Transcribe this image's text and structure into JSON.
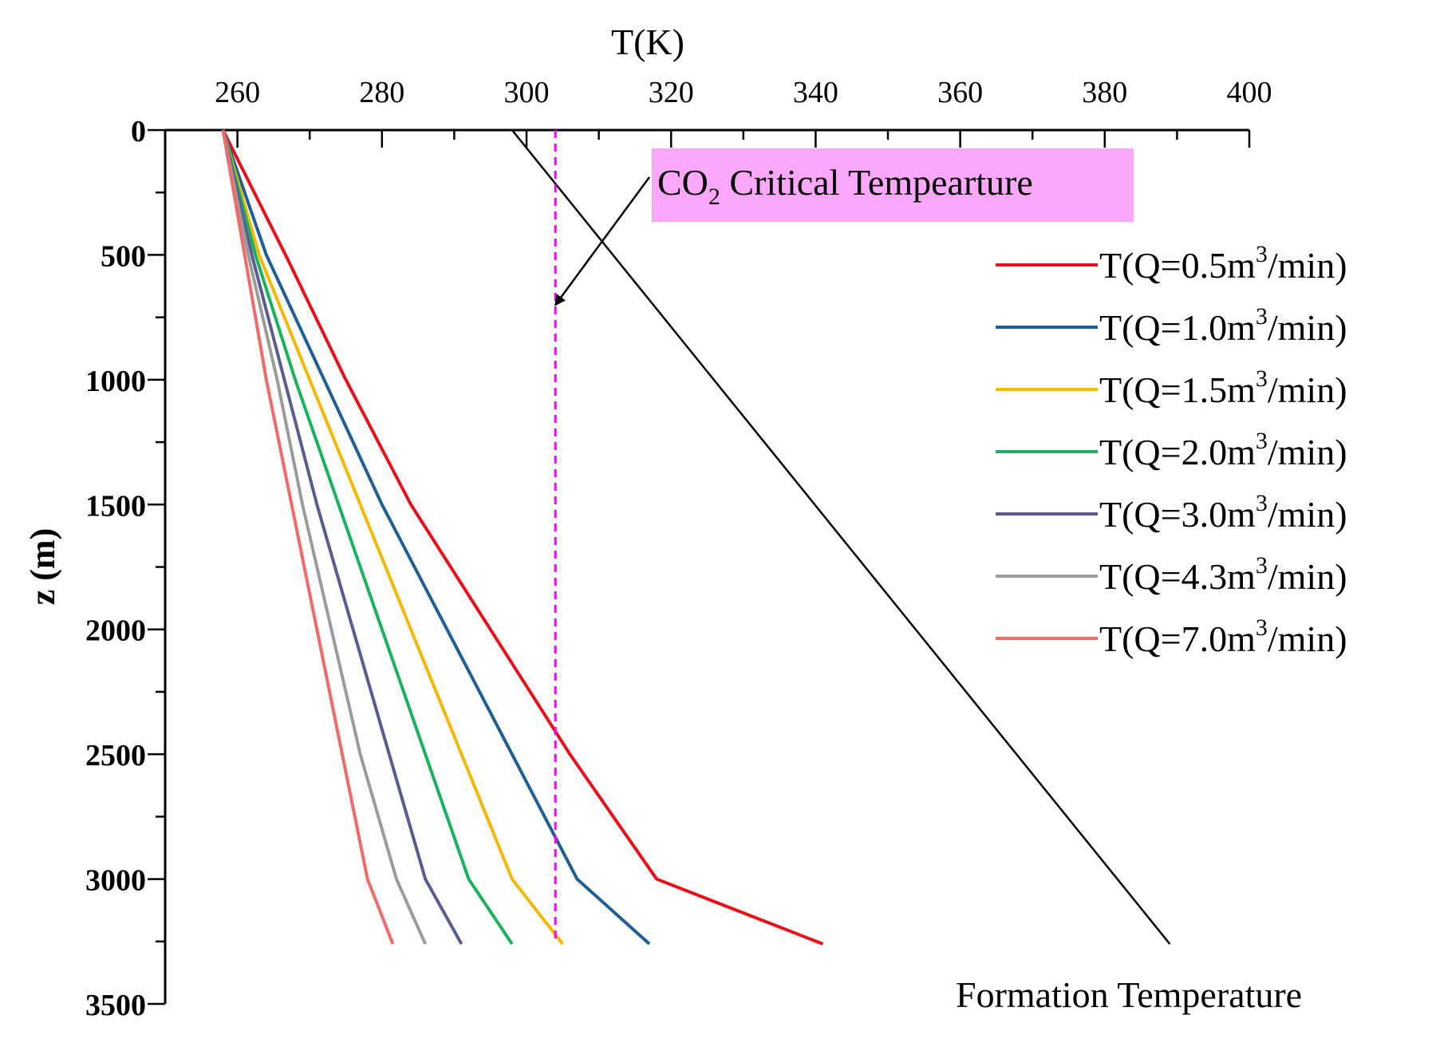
{
  "chart_data": {
    "type": "line",
    "xlabel": "T(K)",
    "ylabel": "z (m)",
    "xlim": [
      250,
      400
    ],
    "ylim": [
      0,
      3500
    ],
    "y_inverted": true,
    "x_axis_position": "top",
    "xticks": [
      260,
      280,
      300,
      320,
      340,
      360,
      380,
      400
    ],
    "yticks": [
      0,
      500,
      1000,
      1500,
      2000,
      2500,
      3000,
      3500
    ],
    "xtick_labels": [
      "260",
      "280",
      "300",
      "320",
      "340",
      "360",
      "380",
      "400"
    ],
    "ytick_labels": [
      "0",
      "500",
      "1000",
      "1500",
      "2000",
      "2500",
      "3000",
      "3500"
    ],
    "legend_position": "right",
    "series": [
      {
        "name": "T(Q=0.5m³/min)",
        "label_prefix": "T(Q=0.5m",
        "label_sup": "3",
        "label_suffix": "/min)",
        "color": "#e8111a",
        "points": [
          [
            258,
            0
          ],
          [
            267,
            520
          ],
          [
            275,
            1000
          ],
          [
            284,
            1500
          ],
          [
            295,
            2000
          ],
          [
            306,
            2500
          ],
          [
            318,
            3000
          ],
          [
            341,
            3260
          ]
        ]
      },
      {
        "name": "T(Q=1.0m³/min)",
        "label_prefix": "T(Q=1.0m",
        "label_sup": "3",
        "label_suffix": "/min)",
        "color": "#1f5f96",
        "points": [
          [
            258,
            0
          ],
          [
            264,
            500
          ],
          [
            272,
            1000
          ],
          [
            280,
            1500
          ],
          [
            289,
            2000
          ],
          [
            298,
            2500
          ],
          [
            307,
            3000
          ],
          [
            317,
            3260
          ]
        ]
      },
      {
        "name": "T(Q=1.5m³/min)",
        "label_prefix": "T(Q=1.5m",
        "label_sup": "3",
        "label_suffix": "/min)",
        "color": "#f5b800",
        "points": [
          [
            258,
            0
          ],
          [
            263,
            500
          ],
          [
            270,
            1000
          ],
          [
            277,
            1500
          ],
          [
            284,
            2000
          ],
          [
            291,
            2500
          ],
          [
            298,
            3000
          ],
          [
            305,
            3260
          ]
        ]
      },
      {
        "name": "T(Q=2.0m³/min)",
        "label_prefix": "T(Q=2.0m",
        "label_sup": "3",
        "label_suffix": "/min)",
        "color": "#1ab25d",
        "points": [
          [
            258,
            0
          ],
          [
            262.5,
            500
          ],
          [
            268,
            1000
          ],
          [
            274,
            1500
          ],
          [
            280,
            2000
          ],
          [
            286,
            2500
          ],
          [
            292,
            3000
          ],
          [
            298,
            3260
          ]
        ]
      },
      {
        "name": "T(Q=3.0m³/min)",
        "label_prefix": "T(Q=3.0m",
        "label_sup": "3",
        "label_suffix": "/min)",
        "color": "#5b5b94",
        "points": [
          [
            258,
            0
          ],
          [
            262,
            500
          ],
          [
            266.5,
            1000
          ],
          [
            271,
            1500
          ],
          [
            276,
            2000
          ],
          [
            281,
            2500
          ],
          [
            286,
            3000
          ],
          [
            291,
            3260
          ]
        ]
      },
      {
        "name": "T(Q=4.3m³/min)",
        "label_prefix": "T(Q=4.3m",
        "label_sup": "3",
        "label_suffix": "/min)",
        "color": "#9b9b9b",
        "points": [
          [
            258,
            0
          ],
          [
            261.5,
            500
          ],
          [
            265.5,
            1000
          ],
          [
            269,
            1500
          ],
          [
            273,
            2000
          ],
          [
            277,
            2500
          ],
          [
            282,
            3000
          ],
          [
            286,
            3260
          ]
        ]
      },
      {
        "name": "T(Q=7.0m³/min)",
        "label_prefix": "T(Q=7.0m",
        "label_sup": "3",
        "label_suffix": "/min)",
        "color": "#f06a6a",
        "points": [
          [
            258,
            0
          ],
          [
            261,
            500
          ],
          [
            264,
            1000
          ],
          [
            267.5,
            1500
          ],
          [
            271,
            2000
          ],
          [
            274.5,
            2500
          ],
          [
            278,
            3000
          ],
          [
            281.5,
            3260
          ]
        ]
      }
    ],
    "formation_line": {
      "name": "Formation Temperature",
      "label": "Formation Temperature",
      "color": "#000000",
      "points": [
        [
          298,
          0
        ],
        [
          389,
          3260
        ]
      ]
    },
    "critical_line": {
      "name": "CO2 Critical Tempearture",
      "x": 304,
      "color": "#ff00ff",
      "dashed": true
    },
    "annotation": {
      "text_prefix": "CO",
      "text_sub": "2",
      "text_suffix": " Critical Tempearture",
      "background": "#fba8fb",
      "arrow_target": [
        304,
        700
      ]
    }
  }
}
